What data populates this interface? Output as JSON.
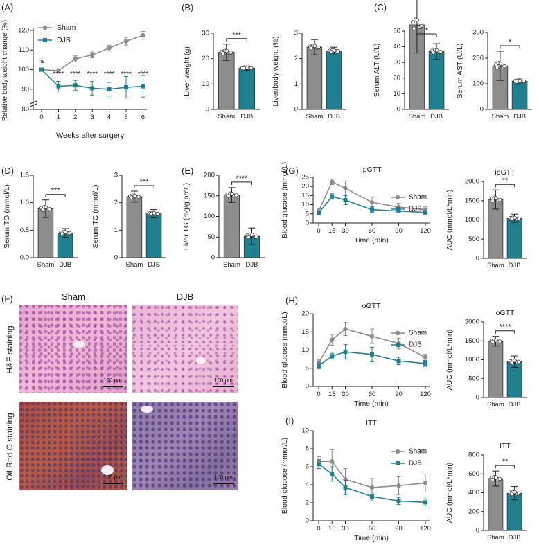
{
  "colors": {
    "sham": "#8c8c8c",
    "djb": "#21808f",
    "axis": "#222222"
  },
  "charts": {
    "A": {
      "type": "line",
      "panel_label": "(A)",
      "xlabel": "Weeks after surgery",
      "ylabel": "Relative body weight change (%)",
      "xticks": [
        "0",
        "1",
        "2",
        "3",
        "4",
        "5",
        "6"
      ],
      "yticks": [
        "80",
        "90",
        "100",
        "110",
        "120"
      ],
      "series": [
        {
          "name": "Sham",
          "x": [
            0,
            1,
            2,
            3,
            4,
            5,
            6
          ],
          "y": [
            100,
            99.5,
            105.5,
            107.5,
            111,
            114.5,
            117.5
          ],
          "err": [
            0,
            1,
            1.5,
            1.5,
            1.5,
            2,
            2
          ]
        },
        {
          "name": "DJB",
          "x": [
            0,
            1,
            2,
            3,
            4,
            5,
            6
          ],
          "y": [
            100,
            91.5,
            92,
            90.5,
            90,
            91,
            91.5
          ],
          "err": [
            0,
            2.5,
            2.5,
            3.5,
            3.5,
            5.5,
            5.5
          ]
        }
      ],
      "annotations": [
        "ns",
        "****",
        "****",
        "****",
        "****",
        "****",
        "****"
      ]
    },
    "B1": {
      "type": "bar",
      "panel_label": "(B)",
      "ylabel": "Liver weight (g)",
      "categories": [
        "Sham",
        "DJB"
      ],
      "values": [
        22.5,
        16.3
      ],
      "err": [
        3.2,
        0.8
      ],
      "yticks": [
        "0",
        "10",
        "20",
        "30"
      ],
      "sig": "***"
    },
    "B2": {
      "type": "bar",
      "ylabel": "Liver/body weight (%)",
      "categories": [
        "Sham",
        "DJB"
      ],
      "values": [
        2.45,
        2.3
      ],
      "err": [
        0.3,
        0.15
      ],
      "yticks": [
        "0",
        "1",
        "2",
        "3"
      ]
    },
    "C1": {
      "type": "bar",
      "panel_label": "(C)",
      "ylabel": "Serum ALT (U/L)",
      "categories": [
        "Sham",
        "DJB"
      ],
      "values": [
        54,
        37
      ],
      "err": [
        18,
        5
      ],
      "yticks": [
        "0",
        "10",
        "20",
        "30",
        "40",
        "50"
      ],
      "sig": "*"
    },
    "C2": {
      "type": "bar",
      "ylabel": "Serum AST (U/L)",
      "categories": [
        "Sham",
        "DJB"
      ],
      "values": [
        170,
        110
      ],
      "err": [
        57,
        12
      ],
      "yticks": [
        "0",
        "100",
        "200",
        "300"
      ],
      "sig": "*"
    },
    "D1": {
      "type": "bar",
      "panel_label": "(D)",
      "ylabel": "Serum TG (mmol/L)",
      "categories": [
        "Sham",
        "DJB"
      ],
      "values": [
        0.89,
        0.45
      ],
      "err": [
        0.16,
        0.08
      ],
      "yticks": [
        "0.0",
        "0.5",
        "1.0",
        "1.5"
      ],
      "sig": "***"
    },
    "D2": {
      "type": "bar",
      "ylabel": "Serum TC (mmol/L)",
      "categories": [
        "Sham",
        "DJB"
      ],
      "values": [
        2.22,
        1.6
      ],
      "err": [
        0.2,
        0.15
      ],
      "yticks": [
        "0",
        "1",
        "2",
        "3"
      ],
      "sig": "***"
    },
    "E": {
      "type": "bar",
      "panel_label": "(E)",
      "ylabel": "Liver TG (mg/g prot.)",
      "categories": [
        "Sham",
        "DJB"
      ],
      "values": [
        152,
        52
      ],
      "err": [
        18,
        20
      ],
      "yticks": [
        "0",
        "50",
        "100",
        "150",
        "200"
      ],
      "sig": "****"
    },
    "G1": {
      "type": "line",
      "panel_label": "(G)",
      "title": "ipGTT",
      "xlabel": "Time (min)",
      "ylabel": "Blood glucose (mmol/L)",
      "xticks": [
        "0",
        "15",
        "30",
        "60",
        "90",
        "120"
      ],
      "yticks": [
        "0",
        "5",
        "10",
        "15",
        "20",
        "25"
      ],
      "series": [
        {
          "name": "Sham",
          "x": [
            0,
            15,
            30,
            60,
            90,
            120
          ],
          "y": [
            6.5,
            22.5,
            19,
            11.3,
            8.7,
            7.3
          ],
          "err": [
            1.2,
            1.5,
            4,
            3,
            2,
            1.5
          ]
        },
        {
          "name": "DJB",
          "x": [
            0,
            15,
            30,
            60,
            90,
            120
          ],
          "y": [
            5.5,
            14.5,
            12.5,
            7.3,
            6.5,
            5.8
          ],
          "err": [
            0.8,
            1.5,
            2.5,
            1.5,
            0.8,
            1
          ]
        }
      ]
    },
    "G2": {
      "type": "bar",
      "title": "ipGTT",
      "ylabel": "AUC (mmol/L*min)",
      "categories": [
        "Sham",
        "DJB"
      ],
      "values": [
        1530,
        1040
      ],
      "err": [
        250,
        110
      ],
      "yticks": [
        "0",
        "500",
        "1000",
        "1500",
        "2000"
      ],
      "sig": "**"
    },
    "H1": {
      "type": "line",
      "panel_label": "(H)",
      "title": "oGTT",
      "xlabel": "Time (min)",
      "ylabel": "Blood glucose (mmol/L)",
      "xticks": [
        "0",
        "15",
        "30",
        "60",
        "90",
        "120"
      ],
      "yticks": [
        "0",
        "5",
        "10",
        "15",
        "20"
      ],
      "series": [
        {
          "name": "Sham",
          "x": [
            0,
            15,
            30,
            60,
            90,
            120
          ],
          "y": [
            6.5,
            12.8,
            15.8,
            13.8,
            11.8,
            8
          ],
          "err": [
            0.8,
            1.5,
            1.8,
            2,
            1.5,
            0.8
          ]
        },
        {
          "name": "DJB",
          "x": [
            0,
            15,
            30,
            60,
            90,
            120
          ],
          "y": [
            5.7,
            8.3,
            9.5,
            8.8,
            7,
            6.3
          ],
          "err": [
            0.8,
            0.8,
            2,
            2,
            1,
            0.8
          ]
        }
      ]
    },
    "H2": {
      "type": "bar",
      "title": "oGTT",
      "ylabel": "AUC (mmol/L*min)",
      "categories": [
        "Sham",
        "DJB"
      ],
      "values": [
        1490,
        950
      ],
      "err": [
        130,
        150
      ],
      "yticks": [
        "0",
        "500",
        "1000",
        "1500",
        "2000"
      ],
      "sig": "****"
    },
    "I1": {
      "type": "line",
      "panel_label": "(I)",
      "title": "ITT",
      "xlabel": "Time (min)",
      "ylabel": "Blood glucose (mmol/L)",
      "xticks": [
        "0",
        "15",
        "30",
        "60",
        "90",
        "120"
      ],
      "yticks": [
        "0",
        "2",
        "4",
        "6",
        "8",
        "10"
      ],
      "series": [
        {
          "name": "Sham",
          "x": [
            0,
            15,
            30,
            60,
            90,
            120
          ],
          "y": [
            6.6,
            6.6,
            4.6,
            3.7,
            3.9,
            4.2
          ],
          "err": [
            0.5,
            1.3,
            1.2,
            1,
            1,
            1
          ]
        },
        {
          "name": "DJB",
          "x": [
            0,
            15,
            30,
            60,
            90,
            120
          ],
          "y": [
            6.3,
            5.2,
            3.7,
            2.7,
            2.2,
            2.05
          ],
          "err": [
            0.5,
            0.8,
            0.8,
            0.5,
            0.4,
            0.4
          ]
        }
      ]
    },
    "I2": {
      "type": "bar",
      "title": "ITT",
      "ylabel": "AUC (mmol/L*min)",
      "categories": [
        "Sham",
        "DJB"
      ],
      "values": [
        550,
        395
      ],
      "err": [
        80,
        70
      ],
      "yticks": [
        "0",
        "200",
        "400",
        "600",
        "800"
      ],
      "sig": "**"
    }
  },
  "histology": {
    "panel_label": "(F)",
    "col_labels": [
      "Sham",
      "DJB"
    ],
    "row_labels": [
      "H&E staining",
      "Oil Red O staining"
    ],
    "scale_label": "100 μm"
  }
}
